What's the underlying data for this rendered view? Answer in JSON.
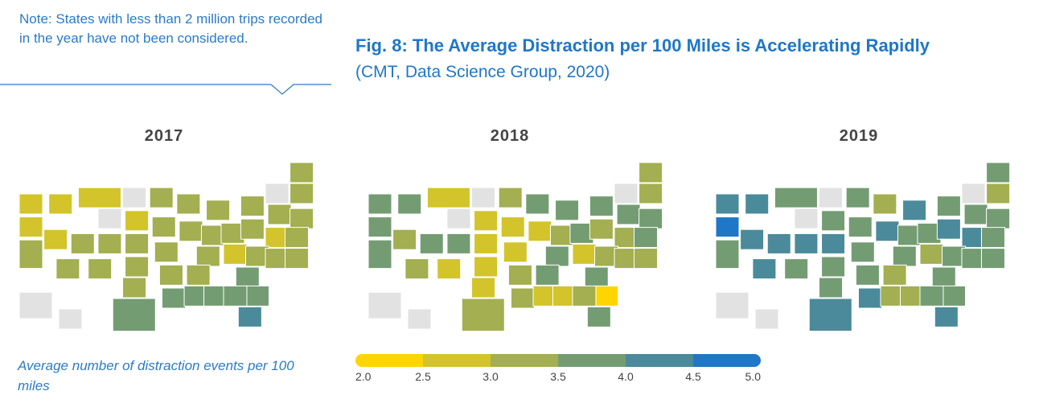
{
  "note": "Note: States with less than 2 million trips recorded in the year have not been considered.",
  "title": "Fig. 8: The Average Distraction per 100 Miles is Accelerating Rapidly",
  "subtitle": "(CMT, Data Science Group, 2020)",
  "caption": "Average number of distraction events per 100 miles",
  "chart_data": {
    "type": "choropleth",
    "title": "Fig. 8: The Average Distraction per 100 Miles is Accelerating Rapidly",
    "years": [
      "2017",
      "2018",
      "2019"
    ],
    "legend": {
      "ticks": [
        "2.0",
        "2.5",
        "3.0",
        "3.5",
        "4.0",
        "4.5",
        "5.0"
      ],
      "colors": [
        "#FFD500",
        "#D2C42A",
        "#A3AF50",
        "#749C73",
        "#4A8A9B",
        "#1F77C8"
      ],
      "missing_color": "#E2E2E2"
    },
    "values": {
      "2017": {
        "WA": 2.75,
        "OR": 2.75,
        "CA": 3.25,
        "NV": 2.75,
        "ID": 2.75,
        "MT": 2.75,
        "WY": null,
        "ND": null,
        "SD": 2.75,
        "UT": 3.25,
        "CO": 3.25,
        "AZ": 3.25,
        "NM": 3.25,
        "TX": 3.75,
        "OK": 3.25,
        "KS": 3.25,
        "NE": 3.25,
        "MN": 3.25,
        "IA": 3.25,
        "MO": 3.25,
        "AR": 3.25,
        "LA": 3.75,
        "WI": 3.25,
        "IL": 3.25,
        "MI": 3.25,
        "IN": 3.25,
        "OH": 3.25,
        "KY": 3.25,
        "TN": 3.25,
        "MS": 3.75,
        "AL": 3.75,
        "GA": 3.75,
        "FL": 4.25,
        "SC": 3.75,
        "NC": 3.75,
        "VA": 3.25,
        "WV": 2.75,
        "PA": 3.25,
        "NY": 3.25,
        "VT": null,
        "NH": 3.25,
        "ME": 3.25,
        "MA": 3.25,
        "CT": 3.25,
        "RI": 3.25,
        "NJ": 2.75,
        "DE": 3.25,
        "MD": 3.25,
        "AK": null,
        "HI": null
      },
      "2018": {
        "WA": 3.75,
        "OR": 3.75,
        "CA": 3.75,
        "NV": 3.25,
        "ID": 3.75,
        "MT": 2.75,
        "WY": null,
        "ND": null,
        "SD": 2.75,
        "UT": 3.75,
        "CO": 3.75,
        "AZ": 3.25,
        "NM": 2.75,
        "TX": 3.25,
        "OK": 2.75,
        "KS": 2.75,
        "NE": 2.75,
        "MN": 3.25,
        "IA": 2.75,
        "MO": 2.75,
        "AR": 3.25,
        "LA": 3.25,
        "WI": 3.75,
        "IL": 2.75,
        "MI": 3.75,
        "IN": 3.25,
        "OH": 3.75,
        "KY": 3.75,
        "TN": 3.75,
        "MS": 2.75,
        "AL": 2.75,
        "GA": 3.25,
        "FL": 3.75,
        "SC": 2.25,
        "NC": 3.75,
        "VA": 3.25,
        "WV": 2.75,
        "PA": 3.25,
        "NY": 3.75,
        "VT": null,
        "NH": 3.25,
        "ME": 3.25,
        "MA": 3.75,
        "CT": 3.75,
        "RI": 3.75,
        "NJ": 3.25,
        "DE": 3.25,
        "MD": 3.25,
        "AK": null,
        "HI": null
      },
      "2019": {
        "WA": 4.25,
        "OR": 4.75,
        "CA": 3.75,
        "NV": 4.25,
        "ID": 4.25,
        "MT": 3.75,
        "WY": null,
        "ND": null,
        "SD": 3.75,
        "UT": 4.25,
        "CO": 4.25,
        "AZ": 4.25,
        "NM": 3.75,
        "TX": 4.25,
        "OK": 3.75,
        "KS": 3.75,
        "NE": 4.25,
        "MN": 3.75,
        "IA": 3.75,
        "MO": 3.75,
        "AR": 3.75,
        "LA": 4.25,
        "WI": 3.25,
        "IL": 4.25,
        "MI": 4.25,
        "IN": 3.75,
        "OH": 3.75,
        "KY": 3.75,
        "TN": 3.25,
        "MS": 3.25,
        "AL": 3.25,
        "GA": 3.75,
        "FL": 4.25,
        "SC": 3.75,
        "NC": 3.75,
        "VA": 3.75,
        "WV": 3.25,
        "PA": 4.25,
        "NY": 3.75,
        "VT": null,
        "NH": 3.25,
        "ME": 3.75,
        "MA": 3.75,
        "CT": 3.75,
        "RI": 3.75,
        "NJ": 4.25,
        "DE": 3.75,
        "MD": 3.75,
        "AK": null,
        "HI": null
      }
    }
  }
}
